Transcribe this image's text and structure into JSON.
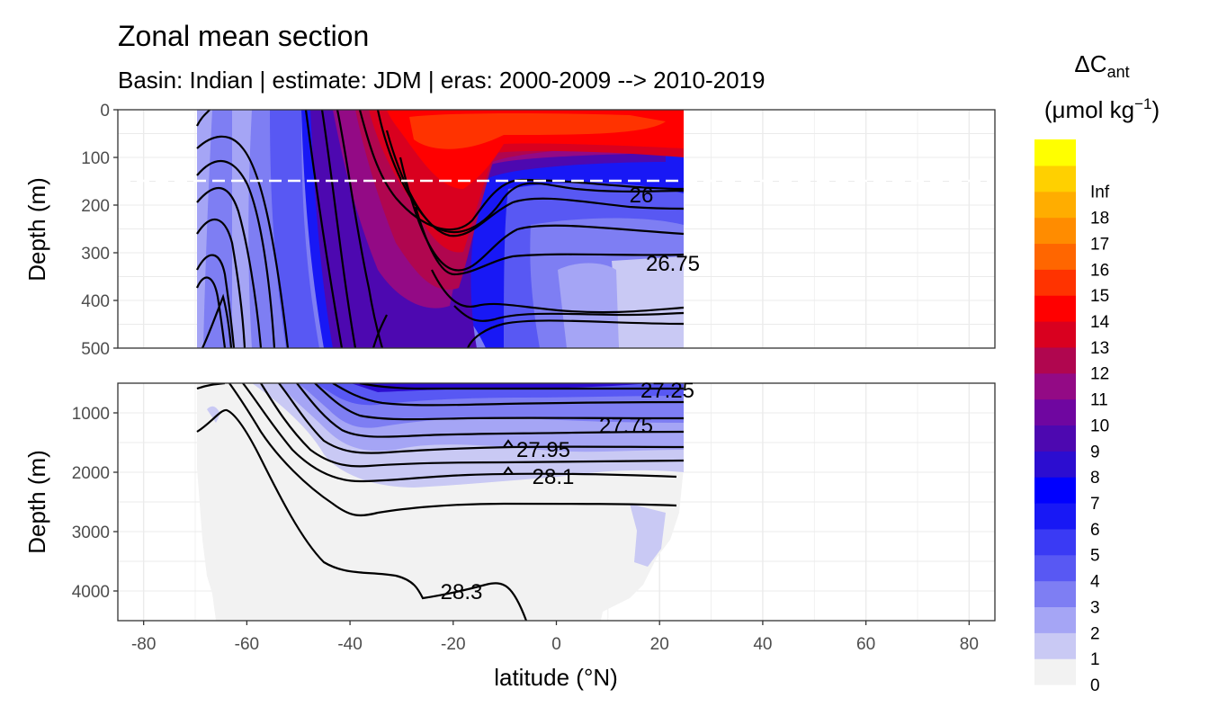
{
  "title": "Zonal mean section",
  "subtitle": "Basin: Indian | estimate: JDM  | eras: 2000-2009 --> 2010-2019",
  "chart_data": {
    "type": "contour",
    "xlabel": "latitude (°N)",
    "ylabel": "Depth (m)",
    "xlim": [
      -85,
      85
    ],
    "x_ticks": [
      -80,
      -60,
      -40,
      -20,
      0,
      20,
      40,
      60,
      80
    ],
    "x_tick_labels": [
      "-80",
      "-60",
      "-40",
      "-20",
      "0",
      "20",
      "40",
      "60",
      "80"
    ],
    "panels": [
      {
        "name": "upper",
        "ylim": [
          0,
          500
        ],
        "y_ticks": [
          0,
          100,
          200,
          300,
          400,
          500
        ],
        "y_tick_labels": [
          "0",
          "100",
          "200",
          "300",
          "400",
          "500"
        ],
        "reference_line_depth": 150
      },
      {
        "name": "lower",
        "ylim": [
          500,
          4500
        ],
        "y_ticks": [
          1000,
          2000,
          3000,
          4000
        ],
        "y_tick_labels": [
          "1000",
          "2000",
          "3000",
          "4000"
        ]
      }
    ],
    "data_extent_lat": [
      -69.5,
      24.5
    ],
    "legend": {
      "title_main": "ΔC",
      "title_sub": "ant",
      "unit": "(μmol kg",
      "unit_sup": "−1",
      "unit_close": ")",
      "levels": [
        "0",
        "1",
        "2",
        "3",
        "4",
        "5",
        "6",
        "7",
        "8",
        "9",
        "10",
        "11",
        "12",
        "13",
        "14",
        "15",
        "16",
        "17",
        "18",
        "Inf"
      ],
      "colors": [
        "#f2f2f2",
        "#c9c9f4",
        "#a5a5f5",
        "#7e7ef3",
        "#5858f3",
        "#3a3af4",
        "#1818f5",
        "#0000ff",
        "#2c0dd0",
        "#4d08b0",
        "#6f06a0",
        "#930a85",
        "#b0064f",
        "#d9001f",
        "#ff0000",
        "#ff3300",
        "#ff6600",
        "#ff8c00",
        "#ffad00",
        "#ffd000",
        "#ffff00"
      ]
    },
    "isopycnal_labels": [
      "26",
      "26.75",
      "27.25",
      "27.75",
      "27.95",
      "28.1",
      "28.3"
    ]
  }
}
